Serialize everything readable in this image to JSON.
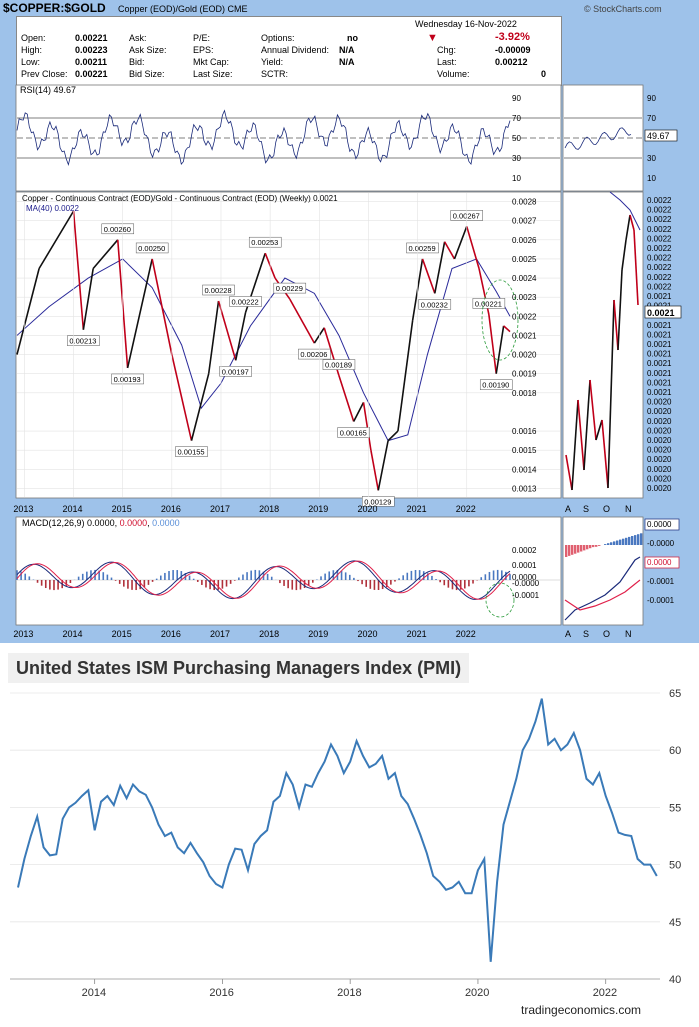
{
  "stockcharts": {
    "symbol": "$COPPER:$GOLD",
    "subtitle": "Copper (EOD)/Gold (EOD)  CME",
    "logo": "© StockCharts.com",
    "date_line": "Wednesday  16-Nov-2022",
    "change_pct": "-3.92%",
    "quote": [
      {
        "label": "Open:",
        "value": "0.00221"
      },
      {
        "label": "High:",
        "value": "0.00223"
      },
      {
        "label": "Low:",
        "value": "0.00211"
      },
      {
        "label": "Prev Close:",
        "value": "0.00221"
      },
      {
        "label": "Ask:",
        "value": ""
      },
      {
        "label": "Ask Size:",
        "value": ""
      },
      {
        "label": "Bid:",
        "value": ""
      },
      {
        "label": "Bid Size:",
        "value": ""
      },
      {
        "label": "P/E:",
        "value": ""
      },
      {
        "label": "EPS:",
        "value": ""
      },
      {
        "label": "Mkt Cap:",
        "value": ""
      },
      {
        "label": "Last Size:",
        "value": ""
      },
      {
        "label": "Options:",
        "value": "no"
      },
      {
        "label": "Annual Dividend:",
        "value": "N/A"
      },
      {
        "label": "Yield:",
        "value": "N/A"
      },
      {
        "label": "SCTR:",
        "value": ""
      },
      {
        "label": "Chg:",
        "value": "-0.00009"
      },
      {
        "label": "Last:",
        "value": "0.00212"
      },
      {
        "label": "Volume:",
        "value": "0"
      }
    ],
    "rsi_label": "RSI(14) 49.67",
    "rsi_right_value": "49.67",
    "price_label": "Copper - Continuous Contract (EOD)/Gold - Continuous Contract (EOD) (Weekly) 0.0021",
    "ma_label": "MA(40) 0.0022",
    "macd_label": "MACD(12,26,9)",
    "macd_values": [
      "0.0000",
      "0.0000",
      "0.0000"
    ],
    "right_price_last": "0.0021",
    "right_month_labels": [
      "A",
      "S",
      "O",
      "N"
    ]
  },
  "chart_data": [
    {
      "type": "line",
      "title": "$COPPER:$GOLD Copper (EOD)/Gold (EOD) CME",
      "series": [
        {
          "name": "Copper - Continuous Contract (EOD)/Gold - Continuous Contract (EOD) (Weekly)",
          "x": [
            2012.85,
            2013.3,
            2014.0,
            2014.2,
            2014.4,
            2014.9,
            2015.1,
            2015.6,
            2016.0,
            2016.4,
            2016.75,
            2016.95,
            2017.3,
            2017.5,
            2017.9,
            2018.1,
            2018.4,
            2018.9,
            2019.1,
            2019.4,
            2019.7,
            2019.9,
            2020.05,
            2020.2,
            2020.4,
            2020.6,
            2020.9,
            2021.1,
            2021.35,
            2021.55,
            2021.75,
            2022.0,
            2022.25,
            2022.45,
            2022.6,
            2022.75,
            2022.88
          ],
          "y": [
            0.002,
            0.00245,
            0.00275,
            0.00213,
            0.00245,
            0.0026,
            0.00193,
            0.0025,
            0.002,
            0.00155,
            0.0019,
            0.00228,
            0.00197,
            0.00222,
            0.00253,
            0.0024,
            0.00229,
            0.00206,
            0.00214,
            0.00189,
            0.00165,
            0.00175,
            0.0015,
            0.00129,
            0.00155,
            0.0016,
            0.00218,
            0.0025,
            0.00232,
            0.00259,
            0.0025,
            0.00267,
            0.00245,
            0.00221,
            0.0019,
            0.00215,
            0.00212
          ]
        },
        {
          "name": "MA(40)",
          "x": [
            2012.85,
            2013.5,
            2014.3,
            2015.0,
            2015.6,
            2016.2,
            2016.6,
            2017.0,
            2017.6,
            2018.3,
            2018.9,
            2019.4,
            2019.9,
            2020.4,
            2020.8,
            2021.2,
            2021.7,
            2022.2,
            2022.6,
            2022.88
          ],
          "y": [
            0.0021,
            0.00225,
            0.0024,
            0.0025,
            0.00235,
            0.00205,
            0.00172,
            0.00185,
            0.00215,
            0.0024,
            0.00232,
            0.0021,
            0.0018,
            0.00155,
            0.00158,
            0.002,
            0.00245,
            0.0025,
            0.00233,
            0.0022
          ]
        }
      ],
      "annotations": [
        "0.00260",
        "0.00250",
        "0.00213",
        "0.00193",
        "0.00155",
        "0.00228",
        "0.00197",
        "0.00253",
        "0.00222",
        "0.00229",
        "0.00206",
        "0.00189",
        "0.00165",
        "0.00129",
        "0.00259",
        "0.00267",
        "0.00232",
        "0.00221",
        "0.00190"
      ],
      "x_ticks": [
        "2013",
        "2014",
        "2015",
        "2016",
        "2017",
        "2018",
        "2019",
        "2020",
        "2021",
        "2022"
      ],
      "y_ticks": [
        "0.0028",
        "0.0027",
        "0.0026",
        "0.0025",
        "0.0024",
        "0.0023",
        "0.0022",
        "0.0021",
        "0.0020",
        "0.0019",
        "0.0018",
        "0.0016",
        "0.0015",
        "0.0014",
        "0.0013"
      ],
      "rsi_ticks": [
        "90",
        "70",
        "50",
        "30",
        "10"
      ],
      "macd_ticks": [
        "0.0002",
        "0.0001",
        "0.0000",
        "-0.0000",
        "-0.0001"
      ],
      "right_y_ticks": [
        "0.0022",
        "0.0022",
        "0.0022",
        "0.0022",
        "0.0022",
        "0.0022",
        "0.0022",
        "0.0022",
        "0.0022",
        "0.0022",
        "0.0021",
        "0.0021",
        "0.0021",
        "0.0021",
        "0.0021",
        "0.0021",
        "0.0021",
        "0.0021",
        "0.0021",
        "0.0021",
        "0.0021",
        "0.0020",
        "0.0020",
        "0.0020",
        "0.0020",
        "0.0020",
        "0.0020",
        "0.0020",
        "0.0020",
        "0.0020",
        "0.0020"
      ],
      "right_macd_ticks": [
        "0.0000",
        "-0.0000",
        "0.0000",
        "-0.0001",
        "-0.0001"
      ],
      "ylim": [
        0.00125,
        0.00285
      ]
    },
    {
      "type": "line",
      "title": "United States ISM Purchasing Managers Index (PMI)",
      "source": "tradingeconomics.com",
      "x_ticks": [
        "2014",
        "2016",
        "2018",
        "2020",
        "2022"
      ],
      "y_ticks": [
        "65",
        "60",
        "55",
        "50",
        "45",
        "40"
      ],
      "ylim": [
        40,
        65
      ],
      "series": [
        {
          "name": "ISM PMI",
          "x": [
            2012.8,
            2012.9,
            2013.0,
            2013.1,
            2013.2,
            2013.3,
            2013.4,
            2013.5,
            2013.6,
            2013.7,
            2013.8,
            2013.9,
            2014.0,
            2014.1,
            2014.2,
            2014.3,
            2014.4,
            2014.5,
            2014.6,
            2014.7,
            2014.8,
            2014.9,
            2015.0,
            2015.1,
            2015.2,
            2015.3,
            2015.4,
            2015.5,
            2015.6,
            2015.7,
            2015.8,
            2015.9,
            2016.0,
            2016.1,
            2016.2,
            2016.3,
            2016.4,
            2016.5,
            2016.6,
            2016.7,
            2016.8,
            2016.9,
            2017.0,
            2017.1,
            2017.2,
            2017.3,
            2017.4,
            2017.5,
            2017.6,
            2017.7,
            2017.8,
            2017.9,
            2018.0,
            2018.1,
            2018.2,
            2018.3,
            2018.4,
            2018.5,
            2018.6,
            2018.7,
            2018.8,
            2018.9,
            2019.0,
            2019.1,
            2019.2,
            2019.3,
            2019.4,
            2019.5,
            2019.6,
            2019.7,
            2019.8,
            2019.9,
            2020.0,
            2020.1,
            2020.2,
            2020.3,
            2020.4,
            2020.5,
            2020.6,
            2020.7,
            2020.8,
            2020.9,
            2021.0,
            2021.1,
            2021.2,
            2021.3,
            2021.4,
            2021.5,
            2021.6,
            2021.7,
            2021.8,
            2021.9,
            2022.0,
            2022.1,
            2022.2,
            2022.3,
            2022.4,
            2022.5,
            2022.6,
            2022.7,
            2022.8
          ],
          "y": [
            48.0,
            50.5,
            52.5,
            54.2,
            51.5,
            50.8,
            50.9,
            54.0,
            55.0,
            55.4,
            56.0,
            56.5,
            53.0,
            55.5,
            56.0,
            55.2,
            56.9,
            55.8,
            57.0,
            56.4,
            56.1,
            55.0,
            53.5,
            52.5,
            52.8,
            51.5,
            51.0,
            51.9,
            51.0,
            50.2,
            49.0,
            48.3,
            48.0,
            50.0,
            51.4,
            51.3,
            49.5,
            51.8,
            52.5,
            53.0,
            55.5,
            56.0,
            58.0,
            57.0,
            55.0,
            57.0,
            56.8,
            58.0,
            59.0,
            60.5,
            59.5,
            58.0,
            59.0,
            60.8,
            59.5,
            58.5,
            58.8,
            59.5,
            57.5,
            58.0,
            56.0,
            55.3,
            54.0,
            52.6,
            51.0,
            49.0,
            48.5,
            47.8,
            48.0,
            48.5,
            47.5,
            47.5,
            49.5,
            50.5,
            41.5,
            48.5,
            53.5,
            55.5,
            57.5,
            60.0,
            61.0,
            62.5,
            64.5,
            60.5,
            61.0,
            60.0,
            60.5,
            61.5,
            60.0,
            57.5,
            57.0,
            58.0,
            56.0,
            54.5,
            52.8,
            52.6,
            52.5,
            50.5,
            50.0,
            50.0,
            49.0
          ]
        }
      ]
    }
  ],
  "te": {
    "title": "United States ISM Purchasing Managers Index (PMI)",
    "brand": "tradingeconomics.com"
  }
}
